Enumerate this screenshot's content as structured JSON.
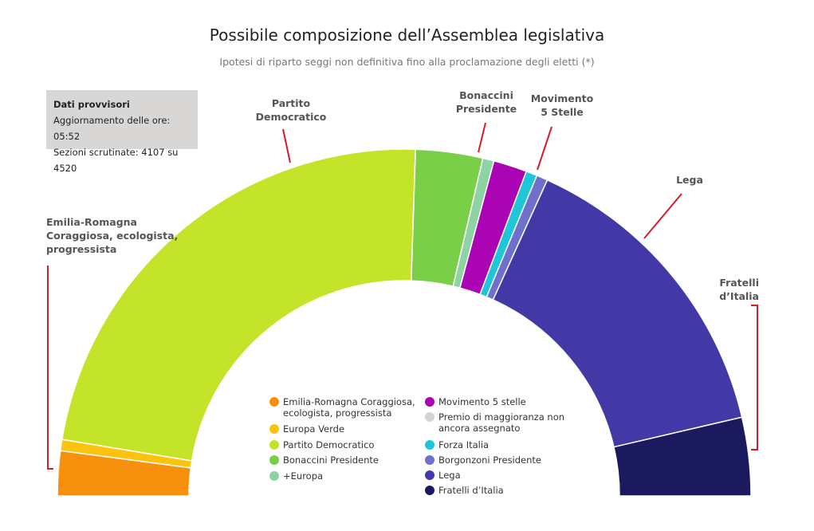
{
  "title": "Possibile composizione dell’Assemblea legislativa",
  "subtitle": "Ipotesi di riparto seggi non definitiva fino alla proclamazione degli eletti (*)",
  "info": {
    "heading": "Dati provvisori",
    "update": "Aggiornamento delle ore: 05:52",
    "sections": "Sezioni scrutinate: 4107 su 4520"
  },
  "chart_data": {
    "type": "pie",
    "shape": "semicircle-donut",
    "title": "Possibile composizione dell’Assemblea legislativa",
    "subtitle": "Ipotesi di riparto seggi non definitiva fino alla proclamazione degli eletti (*)",
    "series": [
      {
        "name": "Emilia-Romagna Coraggiosa, ecologista, progressista",
        "value": 2,
        "color": "#f7910d"
      },
      {
        "name": "Europa Verde",
        "value": 0.5,
        "color": "#fcc30e"
      },
      {
        "name": "Partito Democratico",
        "value": 22,
        "color": "#c4e42a"
      },
      {
        "name": "Bonaccini Presidente",
        "value": 3,
        "color": "#79cf48"
      },
      {
        "name": "+Europa",
        "value": 0.5,
        "color": "#8ed3a3"
      },
      {
        "name": "Movimento 5 stelle",
        "value": 1.5,
        "color": "#aa04b4"
      },
      {
        "name": "Premio di maggioranza non ancora assegnato",
        "value": 0,
        "color": "#d3d3d3"
      },
      {
        "name": "Forza Italia",
        "value": 0.5,
        "color": "#1ec6d9"
      },
      {
        "name": "Borgonzoni Presidente",
        "value": 0.5,
        "color": "#6f6fcc"
      },
      {
        "name": "Lega",
        "value": 14,
        "color": "#4239a6"
      },
      {
        "name": "Fratelli d’Italia",
        "value": 3.5,
        "color": "#1c1a5e"
      }
    ],
    "labels": [
      {
        "text": "Emilia-Romagna\nCoraggiosa, ecologista,\nprogressista"
      },
      {
        "text": "Partito\nDemocratico"
      },
      {
        "text": "Bonaccini\nPresidente"
      },
      {
        "text": "Movimento\n5 Stelle"
      },
      {
        "text": "Lega"
      },
      {
        "text": "Fratelli\nd’Italia"
      }
    ],
    "leader_color": "#d81b2a"
  },
  "legend": {
    "left": [
      "Emilia-Romagna Coraggiosa, ecologista, progressista",
      "Europa Verde",
      "Partito Democratico",
      "Bonaccini Presidente",
      "+Europa"
    ],
    "right": [
      "Movimento 5 stelle",
      "Premio di maggioranza non ancora assegnato",
      "Forza Italia",
      "Borgonzoni Presidente",
      "Lega",
      "Fratelli d’Italia"
    ]
  }
}
